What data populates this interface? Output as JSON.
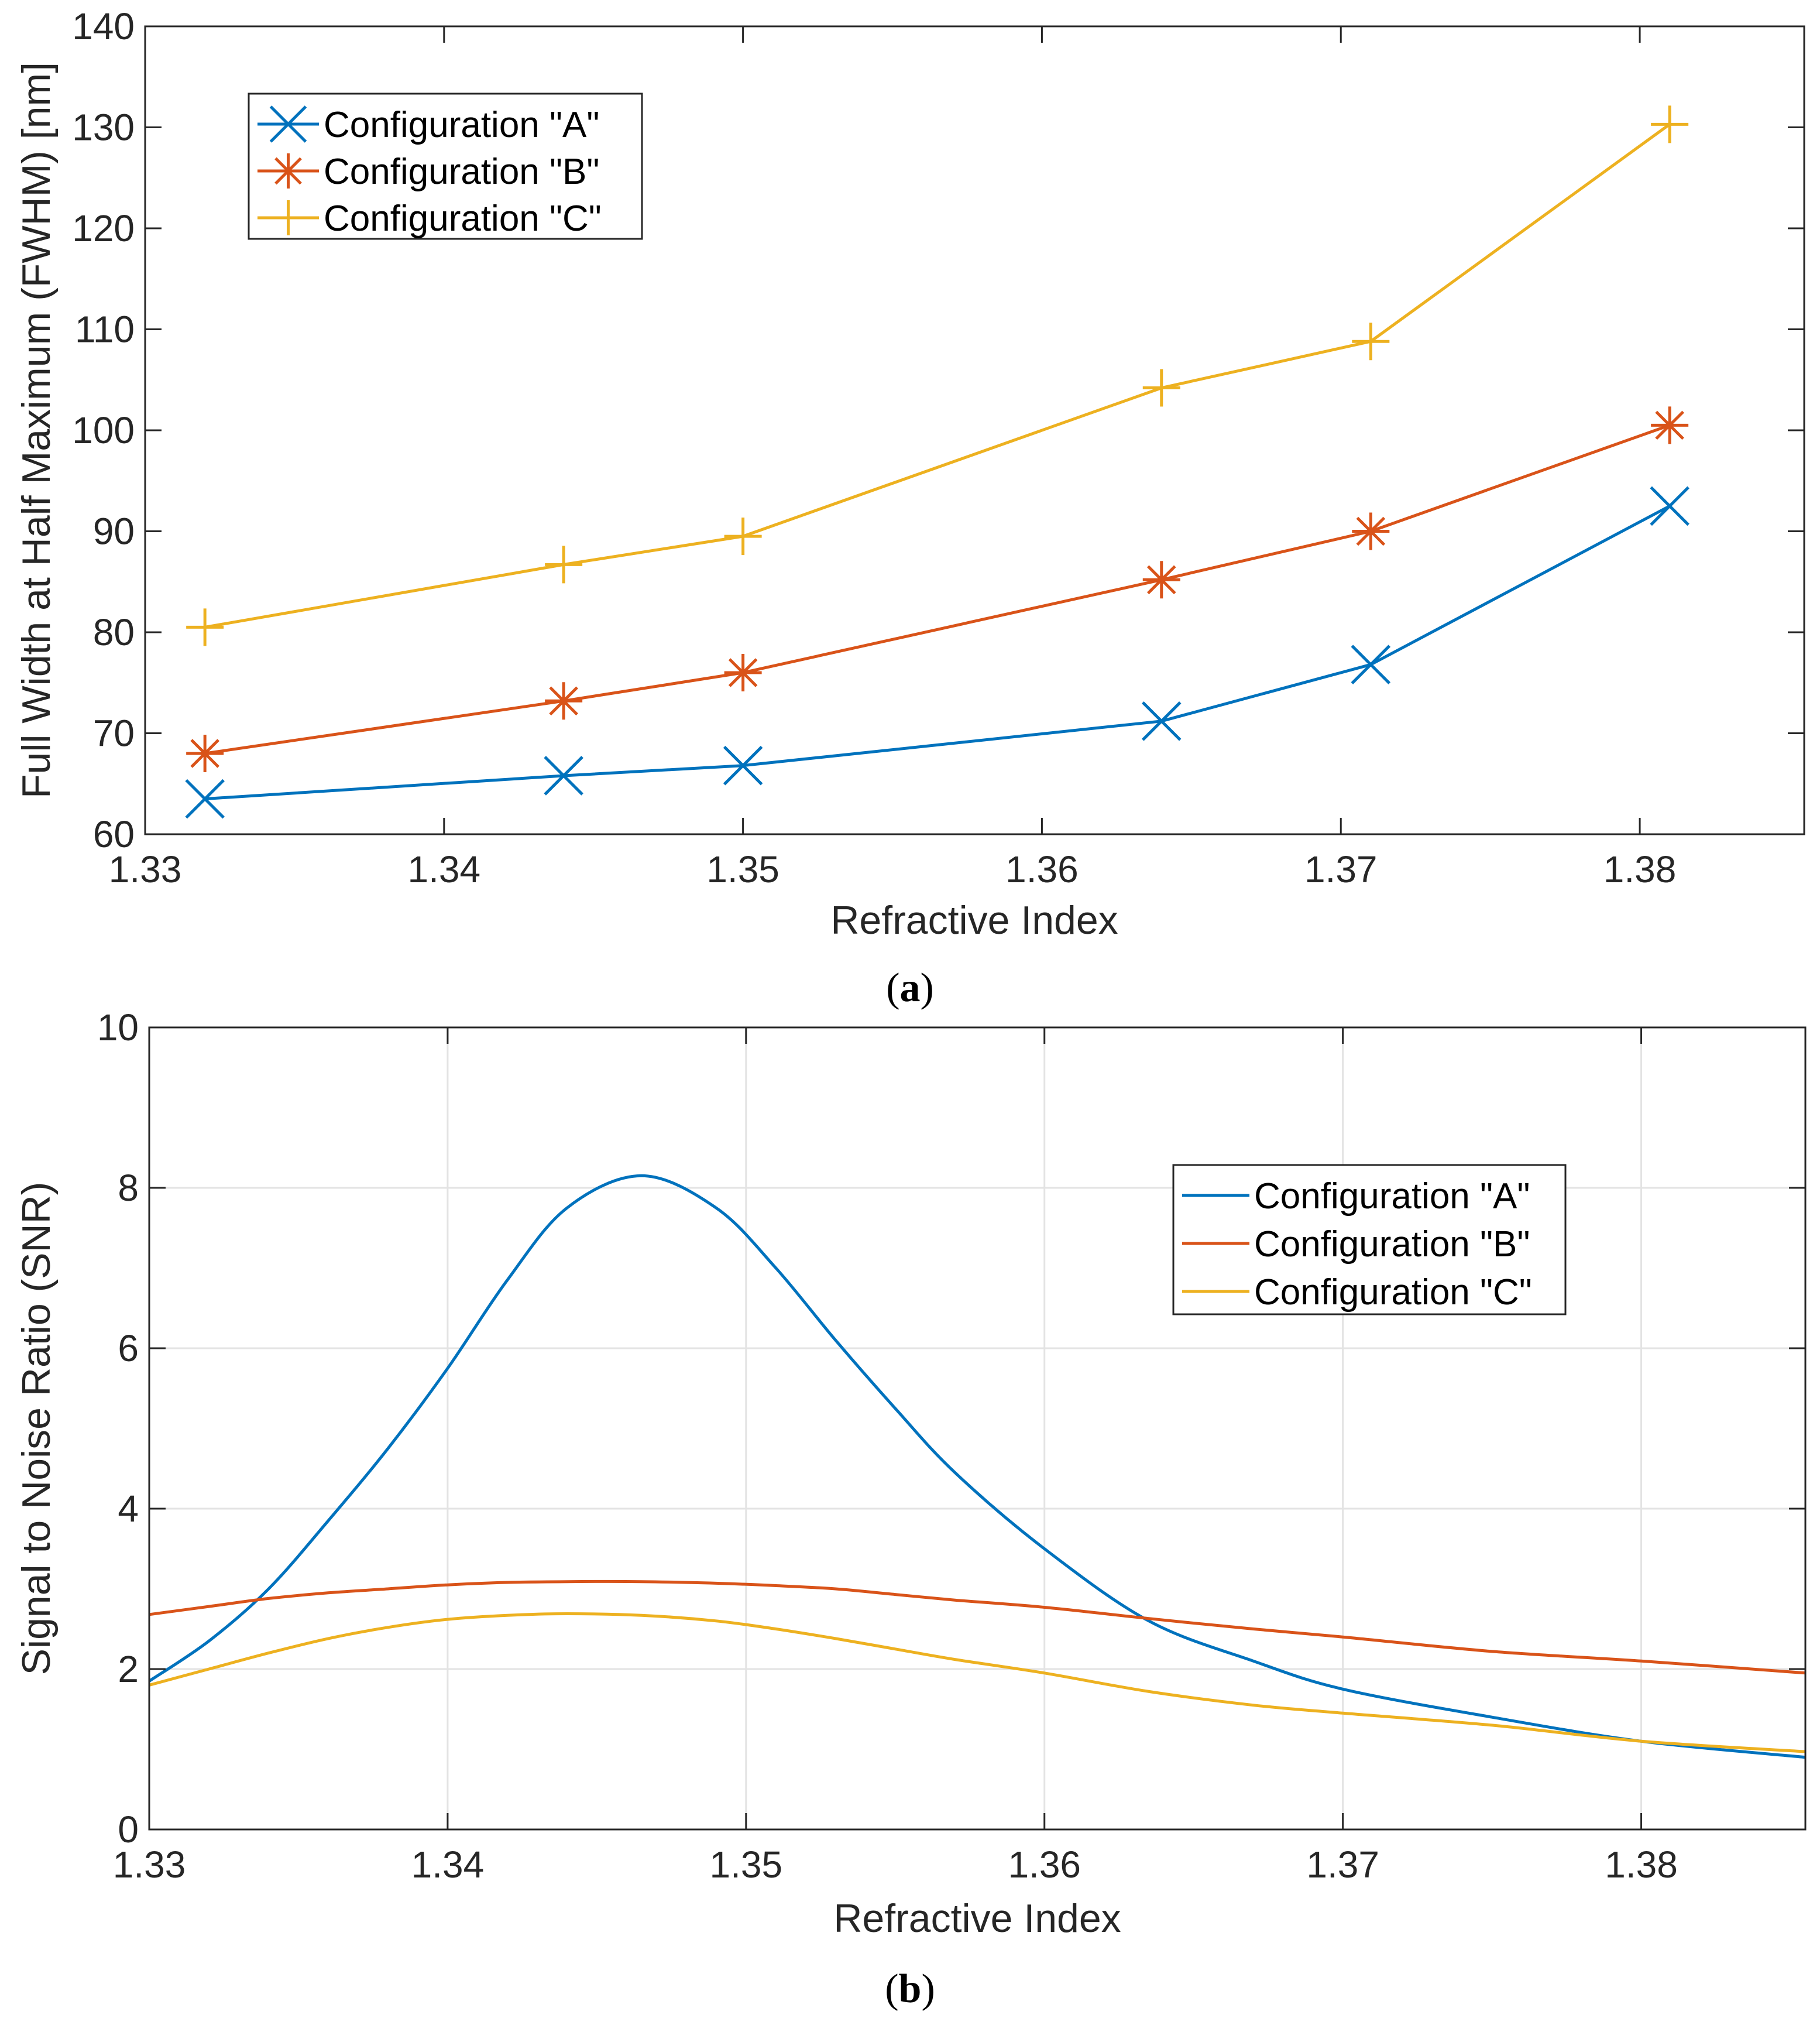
{
  "chart_data": [
    {
      "type": "line",
      "caption_letter": "a",
      "xlabel": "Refractive Index",
      "ylabel": "Full Width at Half Maximum (FWHM) [nm]",
      "xlim": [
        1.33,
        1.3855
      ],
      "ylim": [
        60,
        140
      ],
      "xticks": [
        1.33,
        1.34,
        1.35,
        1.36,
        1.37,
        1.38
      ],
      "xtick_labels": [
        "1.33",
        "1.34",
        "1.35",
        "1.36",
        "1.37",
        "1.38"
      ],
      "yticks": [
        60,
        70,
        80,
        90,
        100,
        110,
        120,
        130,
        140
      ],
      "ytick_labels": [
        "60",
        "70",
        "80",
        "90",
        "100",
        "110",
        "120",
        "130",
        "140"
      ],
      "grid": false,
      "legend_position": "top-left",
      "x": [
        1.332,
        1.344,
        1.35,
        1.364,
        1.371,
        1.381
      ],
      "series": [
        {
          "name": "Configuration \"A\"",
          "color": "#0072BD",
          "marker": "x",
          "values": [
            63.5,
            65.8,
            66.8,
            71.2,
            76.8,
            92.5
          ]
        },
        {
          "name": "Configuration \"B\"",
          "color": "#D95319",
          "marker": "asterisk",
          "values": [
            68.0,
            73.2,
            76.0,
            85.2,
            90.0,
            100.5
          ]
        },
        {
          "name": "Configuration \"C\"",
          "color": "#EDB120",
          "marker": "plus",
          "values": [
            80.5,
            86.7,
            89.5,
            104.2,
            108.8,
            130.3
          ]
        }
      ]
    },
    {
      "type": "line",
      "caption_letter": "b",
      "xlabel": "Refractive Index",
      "ylabel": "Signal to Noise Ratio (SNR)",
      "xlim": [
        1.33,
        1.3855
      ],
      "ylim": [
        0,
        10
      ],
      "xticks": [
        1.33,
        1.34,
        1.35,
        1.36,
        1.37,
        1.38
      ],
      "xtick_labels": [
        "1.33",
        "1.34",
        "1.35",
        "1.36",
        "1.37",
        "1.38"
      ],
      "yticks": [
        0,
        2,
        4,
        6,
        8,
        10
      ],
      "ytick_labels": [
        "0",
        "2",
        "4",
        "6",
        "8",
        "10"
      ],
      "grid": true,
      "legend_position": "top-right",
      "x": [
        1.33,
        1.332,
        1.334,
        1.336,
        1.338,
        1.34,
        1.342,
        1.344,
        1.3465,
        1.349,
        1.351,
        1.353,
        1.355,
        1.357,
        1.36,
        1.3635,
        1.367,
        1.37,
        1.375,
        1.38,
        1.3855
      ],
      "series": [
        {
          "name": "Configuration \"A\"",
          "color": "#0072BD",
          "values": [
            1.85,
            2.35,
            3.0,
            3.85,
            4.75,
            5.75,
            6.85,
            7.75,
            8.15,
            7.75,
            7.0,
            6.1,
            5.25,
            4.45,
            3.5,
            2.6,
            2.1,
            1.75,
            1.4,
            1.1,
            0.9
          ]
        },
        {
          "name": "Configuration \"B\"",
          "color": "#D95319",
          "values": [
            2.68,
            2.78,
            2.88,
            2.95,
            3.0,
            3.05,
            3.08,
            3.09,
            3.09,
            3.07,
            3.04,
            3.0,
            2.93,
            2.86,
            2.77,
            2.63,
            2.5,
            2.4,
            2.22,
            2.1,
            1.95
          ]
        },
        {
          "name": "Configuration \"C\"",
          "color": "#EDB120",
          "values": [
            1.8,
            2.0,
            2.2,
            2.38,
            2.52,
            2.62,
            2.67,
            2.69,
            2.67,
            2.6,
            2.5,
            2.38,
            2.25,
            2.12,
            1.95,
            1.72,
            1.55,
            1.45,
            1.3,
            1.1,
            0.97
          ]
        }
      ]
    }
  ]
}
